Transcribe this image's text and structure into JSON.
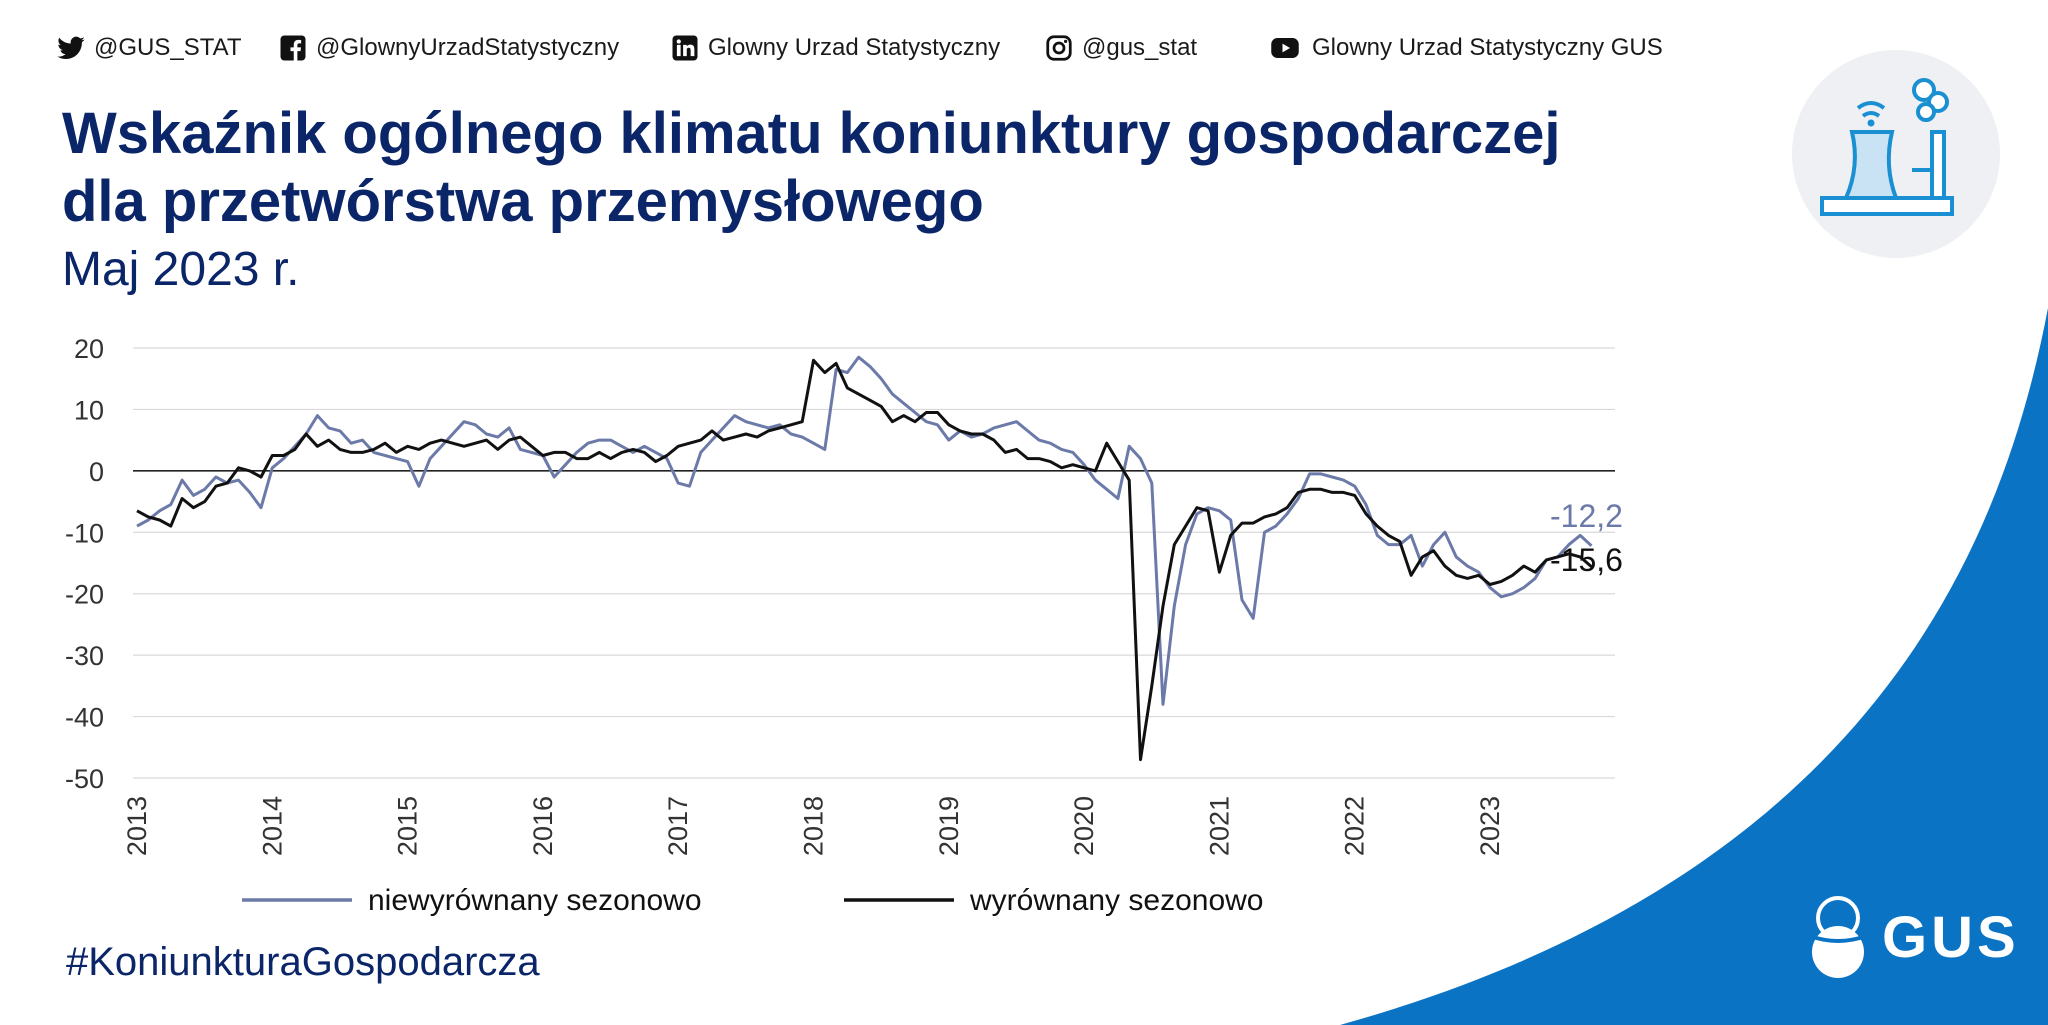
{
  "social": [
    {
      "icon": "twitter-icon",
      "handle": "@GUS_STAT"
    },
    {
      "icon": "facebook-icon",
      "handle": "@GlownyUrzadStatystyczny"
    },
    {
      "icon": "linkedin-icon",
      "handle": "Glowny Urzad Statystyczny"
    },
    {
      "icon": "instagram-icon",
      "handle": "@gus_stat"
    },
    {
      "icon": "youtube-icon",
      "handle": "Glowny Urzad Statystyczny GUS"
    }
  ],
  "header": {
    "title_line1": "Wskaźnik ogólnego klimatu koniunktury gospodarczej",
    "title_line2": "dla przetwórstwa przemysłowego",
    "subtitle": "Maj 2023 r."
  },
  "hashtag": "#KoniunkturaGospodarcza",
  "brand": {
    "logo_text": "GUS"
  },
  "colors": {
    "title": "#0b2569",
    "brand_blue": "#0a73c4",
    "series_unadjusted": "#6b7aa8",
    "series_adjusted": "#111111",
    "grid": "#d9d9d9"
  },
  "chart_data": {
    "type": "line",
    "title": "Wskaźnik ogólnego klimatu koniunktury gospodarczej dla przetwórstwa przemysłowego",
    "subtitle": "Maj 2023 r.",
    "xlabel": "",
    "ylabel": "",
    "ylim": [
      -50,
      20
    ],
    "yticks": [
      20,
      10,
      0,
      -10,
      -20,
      -30,
      -40,
      -50
    ],
    "xticks": [
      "2013",
      "2014",
      "2015",
      "2016",
      "2017",
      "2018",
      "2019",
      "2020",
      "2021",
      "2022",
      "2023"
    ],
    "x_start": "2013-01",
    "x_end": "2023-05",
    "grid": true,
    "legend_position": "bottom",
    "series": [
      {
        "name": "niewyrównany sezonowo",
        "color": "#6b7aa8",
        "end_label": "-12,2",
        "values": [
          -9.0,
          -8.0,
          -6.5,
          -5.5,
          -1.5,
          -4.0,
          -3.0,
          -1.0,
          -2.0,
          -1.5,
          -3.5,
          -6.0,
          0.5,
          2.0,
          4.0,
          6.0,
          9.0,
          7.0,
          6.5,
          4.5,
          5.0,
          3.0,
          2.5,
          2.0,
          1.5,
          -2.5,
          2.0,
          4.0,
          6.0,
          8.0,
          7.5,
          6.0,
          5.5,
          7.0,
          3.5,
          3.0,
          2.5,
          -1.0,
          1.0,
          3.0,
          4.5,
          5.0,
          5.0,
          4.0,
          3.0,
          4.0,
          3.0,
          2.0,
          -2.0,
          -2.5,
          3.0,
          5.0,
          7.0,
          9.0,
          8.0,
          7.5,
          7.0,
          7.5,
          6.0,
          5.5,
          4.5,
          3.5,
          16.5,
          16.0,
          18.5,
          17.0,
          15.0,
          12.5,
          11.0,
          9.5,
          8.0,
          7.5,
          5.0,
          6.5,
          5.5,
          6.0,
          7.0,
          7.5,
          8.0,
          6.5,
          5.0,
          4.5,
          3.5,
          3.0,
          1.0,
          -1.5,
          -3.0,
          -4.5,
          4.0,
          2.0,
          -2.0,
          -38.0,
          -22.0,
          -12.0,
          -7.0,
          -6.0,
          -6.5,
          -8.0,
          -21.0,
          -24.0,
          -10.0,
          -9.0,
          -7.0,
          -4.5,
          -0.5,
          -0.5,
          -1.0,
          -1.5,
          -2.5,
          -5.5,
          -10.5,
          -12.0,
          -12.0,
          -10.5,
          -15.5,
          -12.0,
          -10.0,
          -14.0,
          -15.5,
          -16.5,
          -19.0,
          -20.5,
          -20.0,
          -19.0,
          -17.5,
          -14.5,
          -14.0,
          -12.0,
          -10.5,
          -12.2
        ]
      },
      {
        "name": "wyrównany sezonowo",
        "color": "#111111",
        "end_label": "-15,6",
        "values": [
          -6.5,
          -7.5,
          -8.0,
          -9.0,
          -4.5,
          -6.0,
          -5.0,
          -2.5,
          -2.0,
          0.5,
          0.0,
          -1.0,
          2.5,
          2.5,
          3.5,
          6.0,
          4.0,
          5.0,
          3.5,
          3.0,
          3.0,
          3.5,
          4.5,
          3.0,
          4.0,
          3.5,
          4.5,
          5.0,
          4.5,
          4.0,
          4.5,
          5.0,
          3.5,
          5.0,
          5.5,
          4.0,
          2.5,
          3.0,
          3.0,
          2.0,
          2.0,
          3.0,
          2.0,
          3.0,
          3.5,
          3.0,
          1.5,
          2.5,
          4.0,
          4.5,
          5.0,
          6.5,
          5.0,
          5.5,
          6.0,
          5.5,
          6.5,
          7.0,
          7.5,
          8.0,
          18.0,
          16.0,
          17.5,
          13.5,
          12.5,
          11.5,
          10.5,
          8.0,
          9.0,
          8.0,
          9.5,
          9.5,
          7.5,
          6.5,
          6.0,
          6.0,
          5.0,
          3.0,
          3.5,
          2.0,
          2.0,
          1.5,
          0.5,
          1.0,
          0.5,
          0.0,
          4.5,
          1.5,
          -1.5,
          -47.0,
          -35.0,
          -22.0,
          -12.0,
          -9.0,
          -6.0,
          -6.5,
          -16.5,
          -10.5,
          -8.5,
          -8.5,
          -7.5,
          -7.0,
          -6.0,
          -3.5,
          -3.0,
          -3.0,
          -3.5,
          -3.5,
          -4.0,
          -7.0,
          -9.0,
          -10.5,
          -11.5,
          -17.0,
          -14.0,
          -13.0,
          -15.5,
          -17.0,
          -17.5,
          -17.0,
          -18.5,
          -18.0,
          -17.0,
          -15.5,
          -16.5,
          -14.5,
          -14.0,
          -13.5,
          -14.0,
          -15.6
        ]
      }
    ]
  }
}
